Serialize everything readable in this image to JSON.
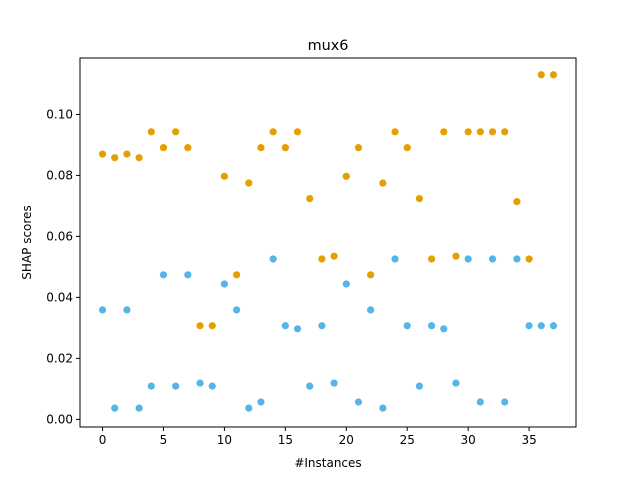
{
  "chart_data": {
    "type": "scatter",
    "title": "mux6",
    "xlabel": "#Instances",
    "ylabel": "SHAP scores",
    "xlim": [
      -1.85,
      38.85
    ],
    "ylim": [
      -0.0025,
      0.1185
    ],
    "xticks": [
      0,
      5,
      10,
      15,
      20,
      25,
      30,
      35
    ],
    "yticks": [
      0.0,
      0.02,
      0.04,
      0.06,
      0.08,
      0.1
    ],
    "ytick_labels": [
      "0.00",
      "0.02",
      "0.04",
      "0.06",
      "0.08",
      "0.10"
    ],
    "grid": false,
    "series": [
      {
        "color": "#E69F00",
        "points": [
          [
            0,
            0.087
          ],
          [
            1,
            0.0858
          ],
          [
            2,
            0.087
          ],
          [
            3,
            0.0858
          ],
          [
            4,
            0.0943
          ],
          [
            5,
            0.0891
          ],
          [
            6,
            0.0943
          ],
          [
            7,
            0.0891
          ],
          [
            8,
            0.0307
          ],
          [
            9,
            0.0307
          ],
          [
            10,
            0.0797
          ],
          [
            11,
            0.0474
          ],
          [
            12,
            0.0775
          ],
          [
            13,
            0.0891
          ],
          [
            14,
            0.0943
          ],
          [
            15,
            0.0891
          ],
          [
            16,
            0.0943
          ],
          [
            17,
            0.0724
          ],
          [
            18,
            0.0526
          ],
          [
            19,
            0.0535
          ],
          [
            20,
            0.0797
          ],
          [
            21,
            0.0891
          ],
          [
            22,
            0.0474
          ],
          [
            23,
            0.0775
          ],
          [
            24,
            0.0943
          ],
          [
            25,
            0.0891
          ],
          [
            26,
            0.0724
          ],
          [
            27,
            0.0526
          ],
          [
            28,
            0.0943
          ],
          [
            29,
            0.0535
          ],
          [
            30,
            0.0943
          ],
          [
            31,
            0.0943
          ],
          [
            32,
            0.0943
          ],
          [
            33,
            0.0943
          ],
          [
            34,
            0.0714
          ],
          [
            35,
            0.0526
          ],
          [
            36,
            0.113
          ],
          [
            37,
            0.113
          ]
        ]
      },
      {
        "color": "#56B4E9",
        "points": [
          [
            0,
            0.0359
          ],
          [
            1,
            0.0037
          ],
          [
            2,
            0.0359
          ],
          [
            3,
            0.0037
          ],
          [
            4,
            0.0109
          ],
          [
            5,
            0.0474
          ],
          [
            6,
            0.0109
          ],
          [
            7,
            0.0474
          ],
          [
            8,
            0.0119
          ],
          [
            9,
            0.0109
          ],
          [
            10,
            0.0444
          ],
          [
            11,
            0.0359
          ],
          [
            12,
            0.0037
          ],
          [
            13,
            0.0057
          ],
          [
            14,
            0.0526
          ],
          [
            15,
            0.0307
          ],
          [
            16,
            0.0297
          ],
          [
            17,
            0.0109
          ],
          [
            18,
            0.0307
          ],
          [
            19,
            0.0119
          ],
          [
            20,
            0.0444
          ],
          [
            21,
            0.0057
          ],
          [
            22,
            0.0359
          ],
          [
            23,
            0.0037
          ],
          [
            24,
            0.0526
          ],
          [
            25,
            0.0307
          ],
          [
            26,
            0.0109
          ],
          [
            27,
            0.0307
          ],
          [
            28,
            0.0297
          ],
          [
            29,
            0.0119
          ],
          [
            30,
            0.0526
          ],
          [
            31,
            0.0057
          ],
          [
            32,
            0.0526
          ],
          [
            33,
            0.0057
          ],
          [
            34,
            0.0526
          ],
          [
            35,
            0.0307
          ],
          [
            36,
            0.0307
          ],
          [
            37,
            0.0307
          ]
        ]
      }
    ]
  }
}
